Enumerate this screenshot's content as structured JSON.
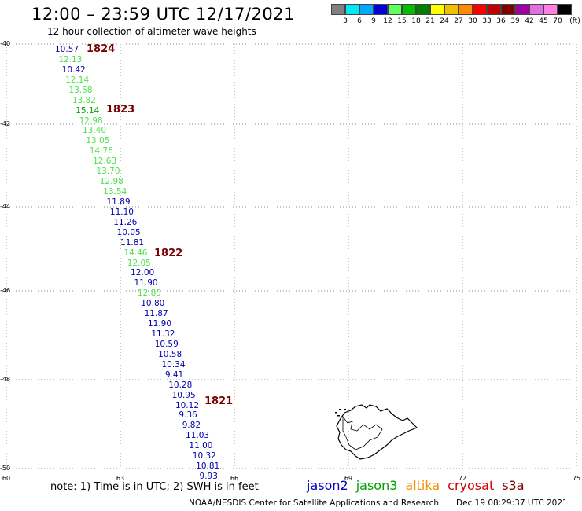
{
  "header": {
    "title": "12:00 – 23:59 UTC 12/17/2021",
    "subtitle": "12 hour collection of altimeter wave heights"
  },
  "scale": {
    "labels": [
      "3",
      "6",
      "9",
      "12",
      "15",
      "18",
      "21",
      "24",
      "27",
      "30",
      "33",
      "36",
      "39",
      "42",
      "45",
      "70"
    ],
    "unit": "(ft)",
    "colors": [
      "#808080",
      "#00e8f0",
      "#00a8ff",
      "#0000d8",
      "#60ff60",
      "#00c000",
      "#008000",
      "#ffff00",
      "#f0c000",
      "#ff8c00",
      "#ff0000",
      "#c00000",
      "#800000",
      "#a000a0",
      "#e070e0",
      "#ff80e0",
      "#000000"
    ]
  },
  "axes": {
    "lat_labels": [
      "-40",
      "-42",
      "-44",
      "-46",
      "-48",
      "-50"
    ],
    "lon_labels": [
      "60",
      "63",
      "66",
      "69",
      "72",
      "75"
    ]
  },
  "track": {
    "points": [
      {
        "v": "10.57",
        "c": "#0000b0"
      },
      {
        "v": "12.13",
        "c": "#50e050"
      },
      {
        "v": "10.42",
        "c": "#0000b0"
      },
      {
        "v": "12.14",
        "c": "#50e050"
      },
      {
        "v": "13.58",
        "c": "#50e050"
      },
      {
        "v": "13.82",
        "c": "#50e050"
      },
      {
        "v": "15.14",
        "c": "#00a000"
      },
      {
        "v": "12.98",
        "c": "#50e050"
      },
      {
        "v": "13.40",
        "c": "#50e050"
      },
      {
        "v": "13.05",
        "c": "#50e050"
      },
      {
        "v": "14.76",
        "c": "#50e050"
      },
      {
        "v": "12.63",
        "c": "#50e050"
      },
      {
        "v": "13.70",
        "c": "#50e050"
      },
      {
        "v": "12.98",
        "c": "#50e050"
      },
      {
        "v": "13.54",
        "c": "#50e050"
      },
      {
        "v": "11.89",
        "c": "#0000b0"
      },
      {
        "v": "11.10",
        "c": "#0000b0"
      },
      {
        "v": "11.26",
        "c": "#0000b0"
      },
      {
        "v": "10.05",
        "c": "#0000b0"
      },
      {
        "v": "11.81",
        "c": "#0000b0"
      },
      {
        "v": "14.46",
        "c": "#50e050"
      },
      {
        "v": "12.05",
        "c": "#50e050"
      },
      {
        "v": "12.00",
        "c": "#0000b0"
      },
      {
        "v": "11.90",
        "c": "#0000b0"
      },
      {
        "v": "12.85",
        "c": "#50e050"
      },
      {
        "v": "10.80",
        "c": "#0000b0"
      },
      {
        "v": "11.87",
        "c": "#0000b0"
      },
      {
        "v": "11.90",
        "c": "#0000b0"
      },
      {
        "v": "11.32",
        "c": "#0000b0"
      },
      {
        "v": "10.59",
        "c": "#0000b0"
      },
      {
        "v": "10.58",
        "c": "#0000b0"
      },
      {
        "v": "10.34",
        "c": "#0000b0"
      },
      {
        "v": "9.41",
        "c": "#0000b0"
      },
      {
        "v": "10.28",
        "c": "#0000b0"
      },
      {
        "v": "10.95",
        "c": "#0000b0"
      },
      {
        "v": "10.12",
        "c": "#0000b0"
      },
      {
        "v": "9.36",
        "c": "#0000b0"
      },
      {
        "v": "9.82",
        "c": "#0000b0"
      },
      {
        "v": "11.03",
        "c": "#0000b0"
      },
      {
        "v": "11.00",
        "c": "#0000b0"
      },
      {
        "v": "10.32",
        "c": "#0000b0"
      },
      {
        "v": "10.81",
        "c": "#0000b0"
      },
      {
        "v": "9.93",
        "c": "#0000b0"
      }
    ],
    "times": [
      "1824",
      "1823",
      "1822",
      "1821"
    ]
  },
  "footer": {
    "note": "note:  1) Time is in UTC;  2) SWH is in feet",
    "legend": [
      {
        "name": "jason2",
        "color": "#0000c8"
      },
      {
        "name": "jason3",
        "color": "#00a000"
      },
      {
        "name": "altika",
        "color": "#f09000"
      },
      {
        "name": "cryosat",
        "color": "#d00000"
      },
      {
        "name": "s3a",
        "color": "#800000"
      }
    ],
    "credit": "NOAA/NESDIS Center for Satellite Applications and Research",
    "timestamp": "Dec 19 08:29:37 UTC 2021"
  }
}
